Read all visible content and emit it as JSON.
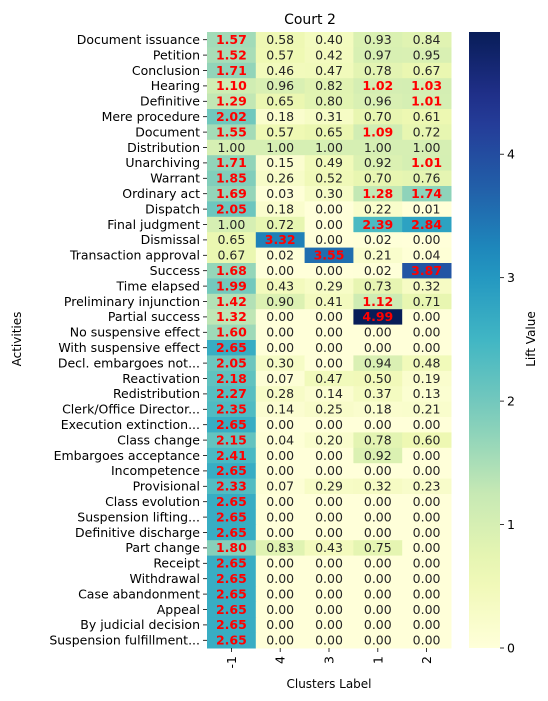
{
  "chart_data": {
    "type": "heatmap",
    "title": "Court 2",
    "xlabel": "Clusters Label",
    "ylabel": "Activities",
    "colorbar_label": "Lift Value",
    "colormap": "YlGnBu",
    "vmin": 0,
    "vmax": 4.99,
    "colorbar_ticks": [
      "0",
      "1",
      "2",
      "3",
      "4"
    ],
    "highlight_color": "#ff0000",
    "highlight_rule": "value > 1",
    "columns": [
      "-1",
      "4",
      "3",
      "1",
      "2"
    ],
    "rows": [
      "Document issuance",
      "Petition",
      "Conclusion",
      "Hearing",
      "Definitive",
      "Mere procedure",
      "Document",
      "Distribution",
      "Unarchiving",
      "Warrant",
      "Ordinary act",
      "Dispatch",
      "Final judgment",
      "Dismissal",
      "Transaction approval",
      "Success",
      "Time elapsed",
      "Preliminary injunction",
      "Partial success",
      "No suspensive effect",
      "With suspensive effect",
      "Decl. embargoes not...",
      "Reactivation",
      "Redistribution",
      "Clerk/Office Director...",
      "Execution extinction...",
      "Class change",
      "Embargoes acceptance",
      "Incompetence",
      "Provisional",
      "Class evolution",
      "Suspension lifting...",
      "Definitive discharge",
      "Part change",
      "Receipt",
      "Withdrawal",
      "Case abandonment",
      "Appeal",
      "By judicial decision",
      "Suspension fulfillment..."
    ],
    "values": [
      [
        1.57,
        0.58,
        0.4,
        0.93,
        0.84
      ],
      [
        1.52,
        0.57,
        0.42,
        0.97,
        0.95
      ],
      [
        1.71,
        0.46,
        0.47,
        0.78,
        0.67
      ],
      [
        1.1,
        0.96,
        0.82,
        1.02,
        1.03
      ],
      [
        1.29,
        0.65,
        0.8,
        0.96,
        1.01
      ],
      [
        2.02,
        0.18,
        0.31,
        0.7,
        0.61
      ],
      [
        1.55,
        0.57,
        0.65,
        1.09,
        0.72
      ],
      [
        1.0,
        1.0,
        1.0,
        1.0,
        1.0
      ],
      [
        1.71,
        0.15,
        0.49,
        0.92,
        1.01
      ],
      [
        1.85,
        0.26,
        0.52,
        0.7,
        0.76
      ],
      [
        1.69,
        0.03,
        0.3,
        1.28,
        1.74
      ],
      [
        2.05,
        0.18,
        0.0,
        0.22,
        0.01
      ],
      [
        1.0,
        0.72,
        0.0,
        2.39,
        2.84
      ],
      [
        0.65,
        3.32,
        0.0,
        0.02,
        0.0
      ],
      [
        0.67,
        0.02,
        3.55,
        0.21,
        0.04
      ],
      [
        1.68,
        0.0,
        0.0,
        0.02,
        3.87
      ],
      [
        1.99,
        0.43,
        0.29,
        0.73,
        0.32
      ],
      [
        1.42,
        0.9,
        0.41,
        1.12,
        0.71
      ],
      [
        1.32,
        0.0,
        0.0,
        4.99,
        0.0
      ],
      [
        1.6,
        0.0,
        0.0,
        0.0,
        0.0
      ],
      [
        2.65,
        0.0,
        0.0,
        0.0,
        0.0
      ],
      [
        2.05,
        0.3,
        0.0,
        0.94,
        0.48
      ],
      [
        2.18,
        0.07,
        0.47,
        0.5,
        0.19
      ],
      [
        2.27,
        0.28,
        0.14,
        0.37,
        0.13
      ],
      [
        2.35,
        0.14,
        0.25,
        0.18,
        0.21
      ],
      [
        2.65,
        0.0,
        0.0,
        0.0,
        0.0
      ],
      [
        2.15,
        0.04,
        0.2,
        0.78,
        0.6
      ],
      [
        2.41,
        0.0,
        0.0,
        0.92,
        0.0
      ],
      [
        2.65,
        0.0,
        0.0,
        0.0,
        0.0
      ],
      [
        2.33,
        0.07,
        0.29,
        0.32,
        0.23
      ],
      [
        2.65,
        0.0,
        0.0,
        0.0,
        0.0
      ],
      [
        2.65,
        0.0,
        0.0,
        0.0,
        0.0
      ],
      [
        2.65,
        0.0,
        0.0,
        0.0,
        0.0
      ],
      [
        1.8,
        0.83,
        0.43,
        0.75,
        0.0
      ],
      [
        2.65,
        0.0,
        0.0,
        0.0,
        0.0
      ],
      [
        2.65,
        0.0,
        0.0,
        0.0,
        0.0
      ],
      [
        2.65,
        0.0,
        0.0,
        0.0,
        0.0
      ],
      [
        2.65,
        0.0,
        0.0,
        0.0,
        0.0
      ],
      [
        2.65,
        0.0,
        0.0,
        0.0,
        0.0
      ],
      [
        2.65,
        0.0,
        0.0,
        0.0,
        0.0
      ]
    ]
  }
}
